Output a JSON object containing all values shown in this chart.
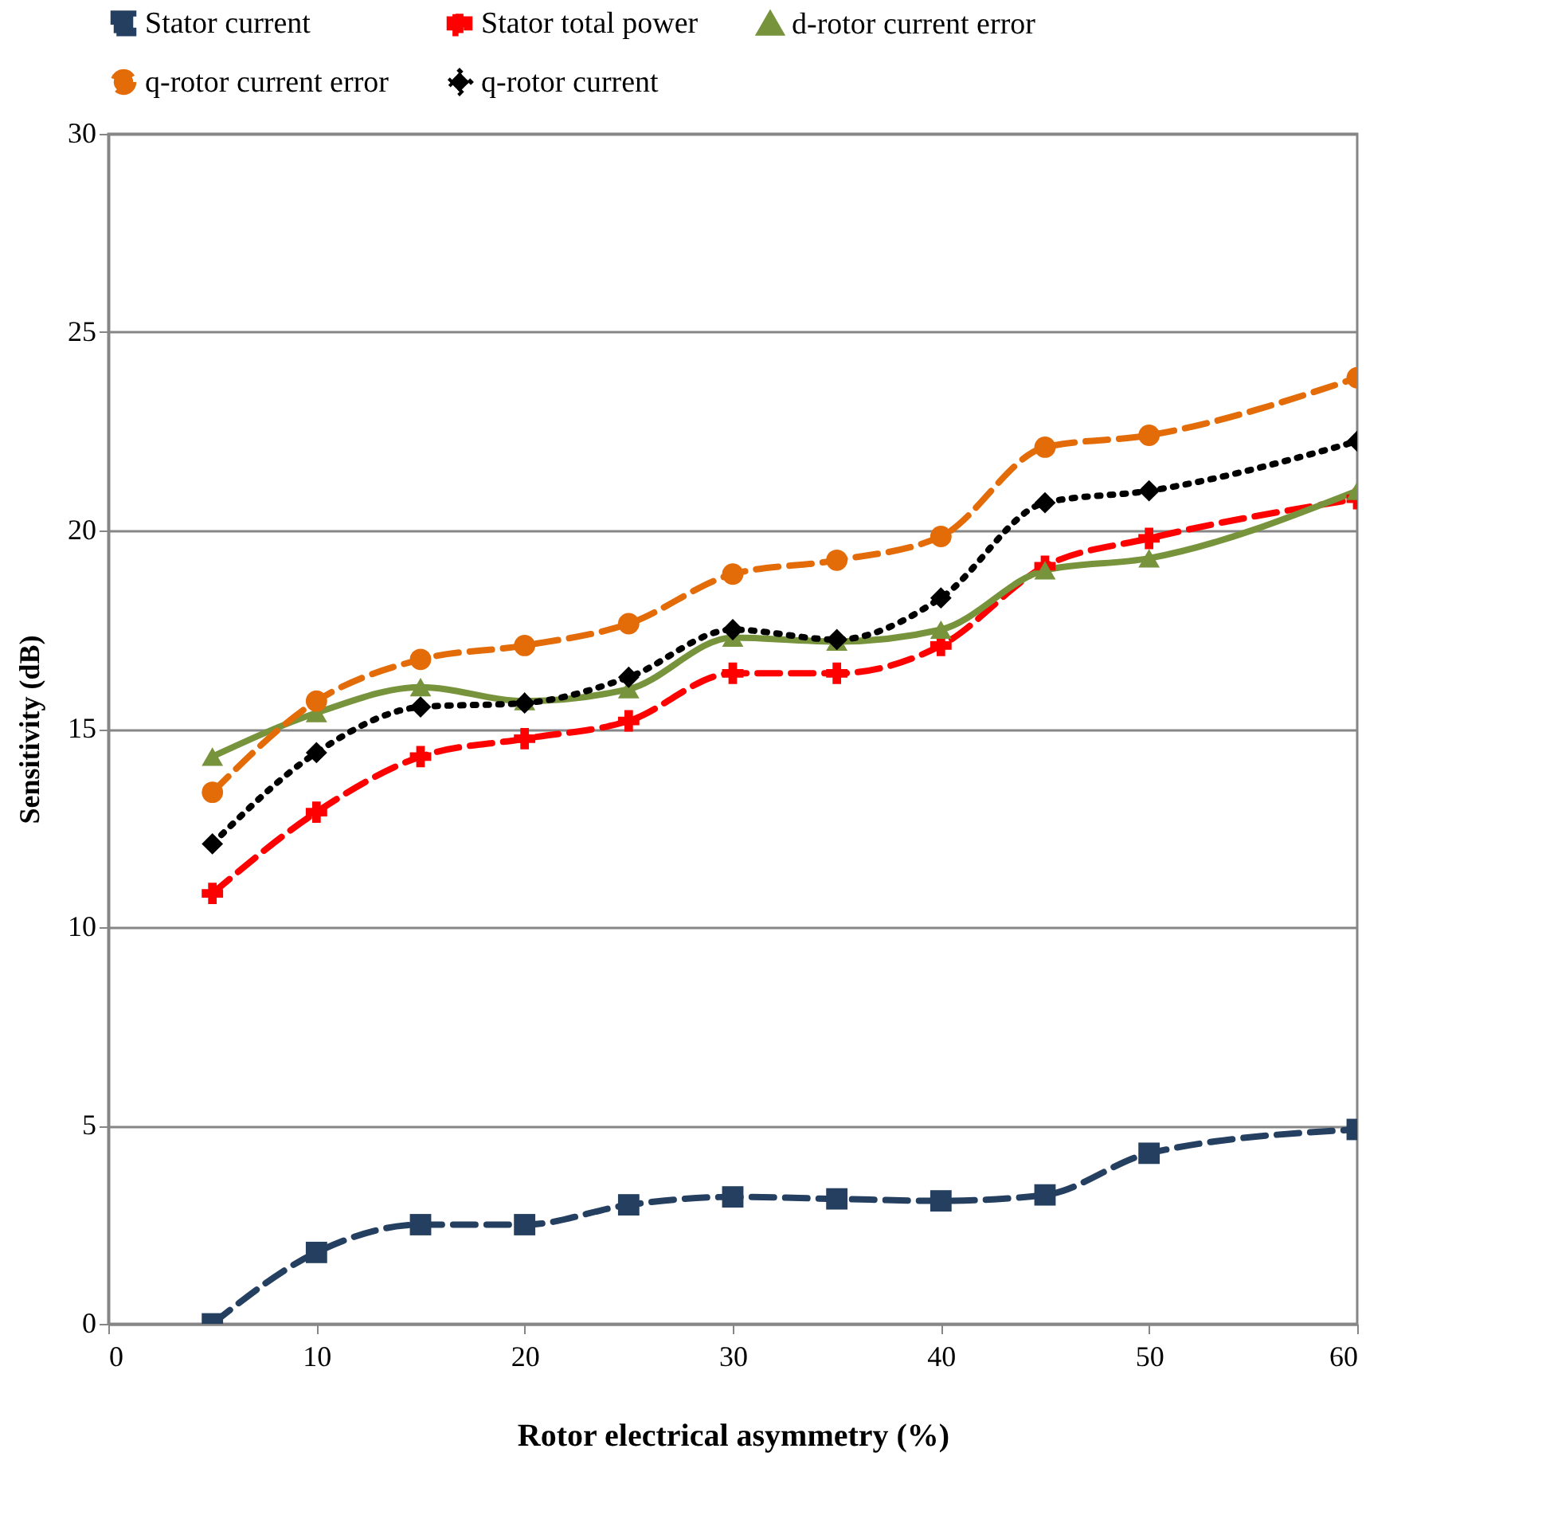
{
  "chart_data": {
    "type": "line",
    "xlabel": "Rotor electrical asymmetry (%)",
    "ylabel": "Sensitivity (dB)",
    "x": [
      5,
      10,
      15,
      20,
      25,
      30,
      35,
      40,
      45,
      50,
      60
    ],
    "series": [
      {
        "name": "Stator current",
        "color": "#243f60",
        "marker": "square",
        "line_style": "dashed",
        "values": [
          0,
          1.8,
          2.5,
          2.5,
          3.0,
          3.2,
          3.15,
          3.1,
          3.25,
          4.3,
          4.9
        ]
      },
      {
        "name": "Stator total power",
        "color": "#ff0000",
        "marker": "cross",
        "line_style": "dashed",
        "values": [
          10.85,
          12.9,
          14.3,
          14.75,
          15.2,
          16.4,
          16.4,
          17.1,
          19.1,
          19.8,
          20.8
        ]
      },
      {
        "name": "d-rotor current error",
        "color": "#77933c",
        "marker": "triangle",
        "line_style": "solid",
        "values": [
          14.3,
          15.4,
          16.05,
          15.7,
          16.0,
          17.3,
          17.2,
          17.5,
          19.0,
          19.3,
          21.0
        ]
      },
      {
        "name": "q-rotor current error",
        "color": "#e36c09",
        "marker": "circle",
        "line_style": "dashed",
        "values": [
          13.4,
          15.7,
          16.75,
          17.1,
          17.65,
          18.9,
          19.25,
          19.85,
          22.1,
          22.4,
          23.85
        ]
      },
      {
        "name": "q-rotor current",
        "color": "#000000",
        "marker": "diamond",
        "line_style": "dotted",
        "values": [
          12.1,
          14.4,
          15.55,
          15.65,
          16.3,
          17.5,
          17.25,
          18.3,
          20.7,
          21.0,
          22.25
        ]
      }
    ],
    "xlim": [
      0,
      60
    ],
    "xticks": [
      0,
      10,
      20,
      30,
      40,
      50,
      60
    ],
    "ylim": [
      0,
      30
    ],
    "yticks": [
      0,
      5,
      10,
      15,
      20,
      25,
      30
    ],
    "grid": "y",
    "legend": "top"
  }
}
